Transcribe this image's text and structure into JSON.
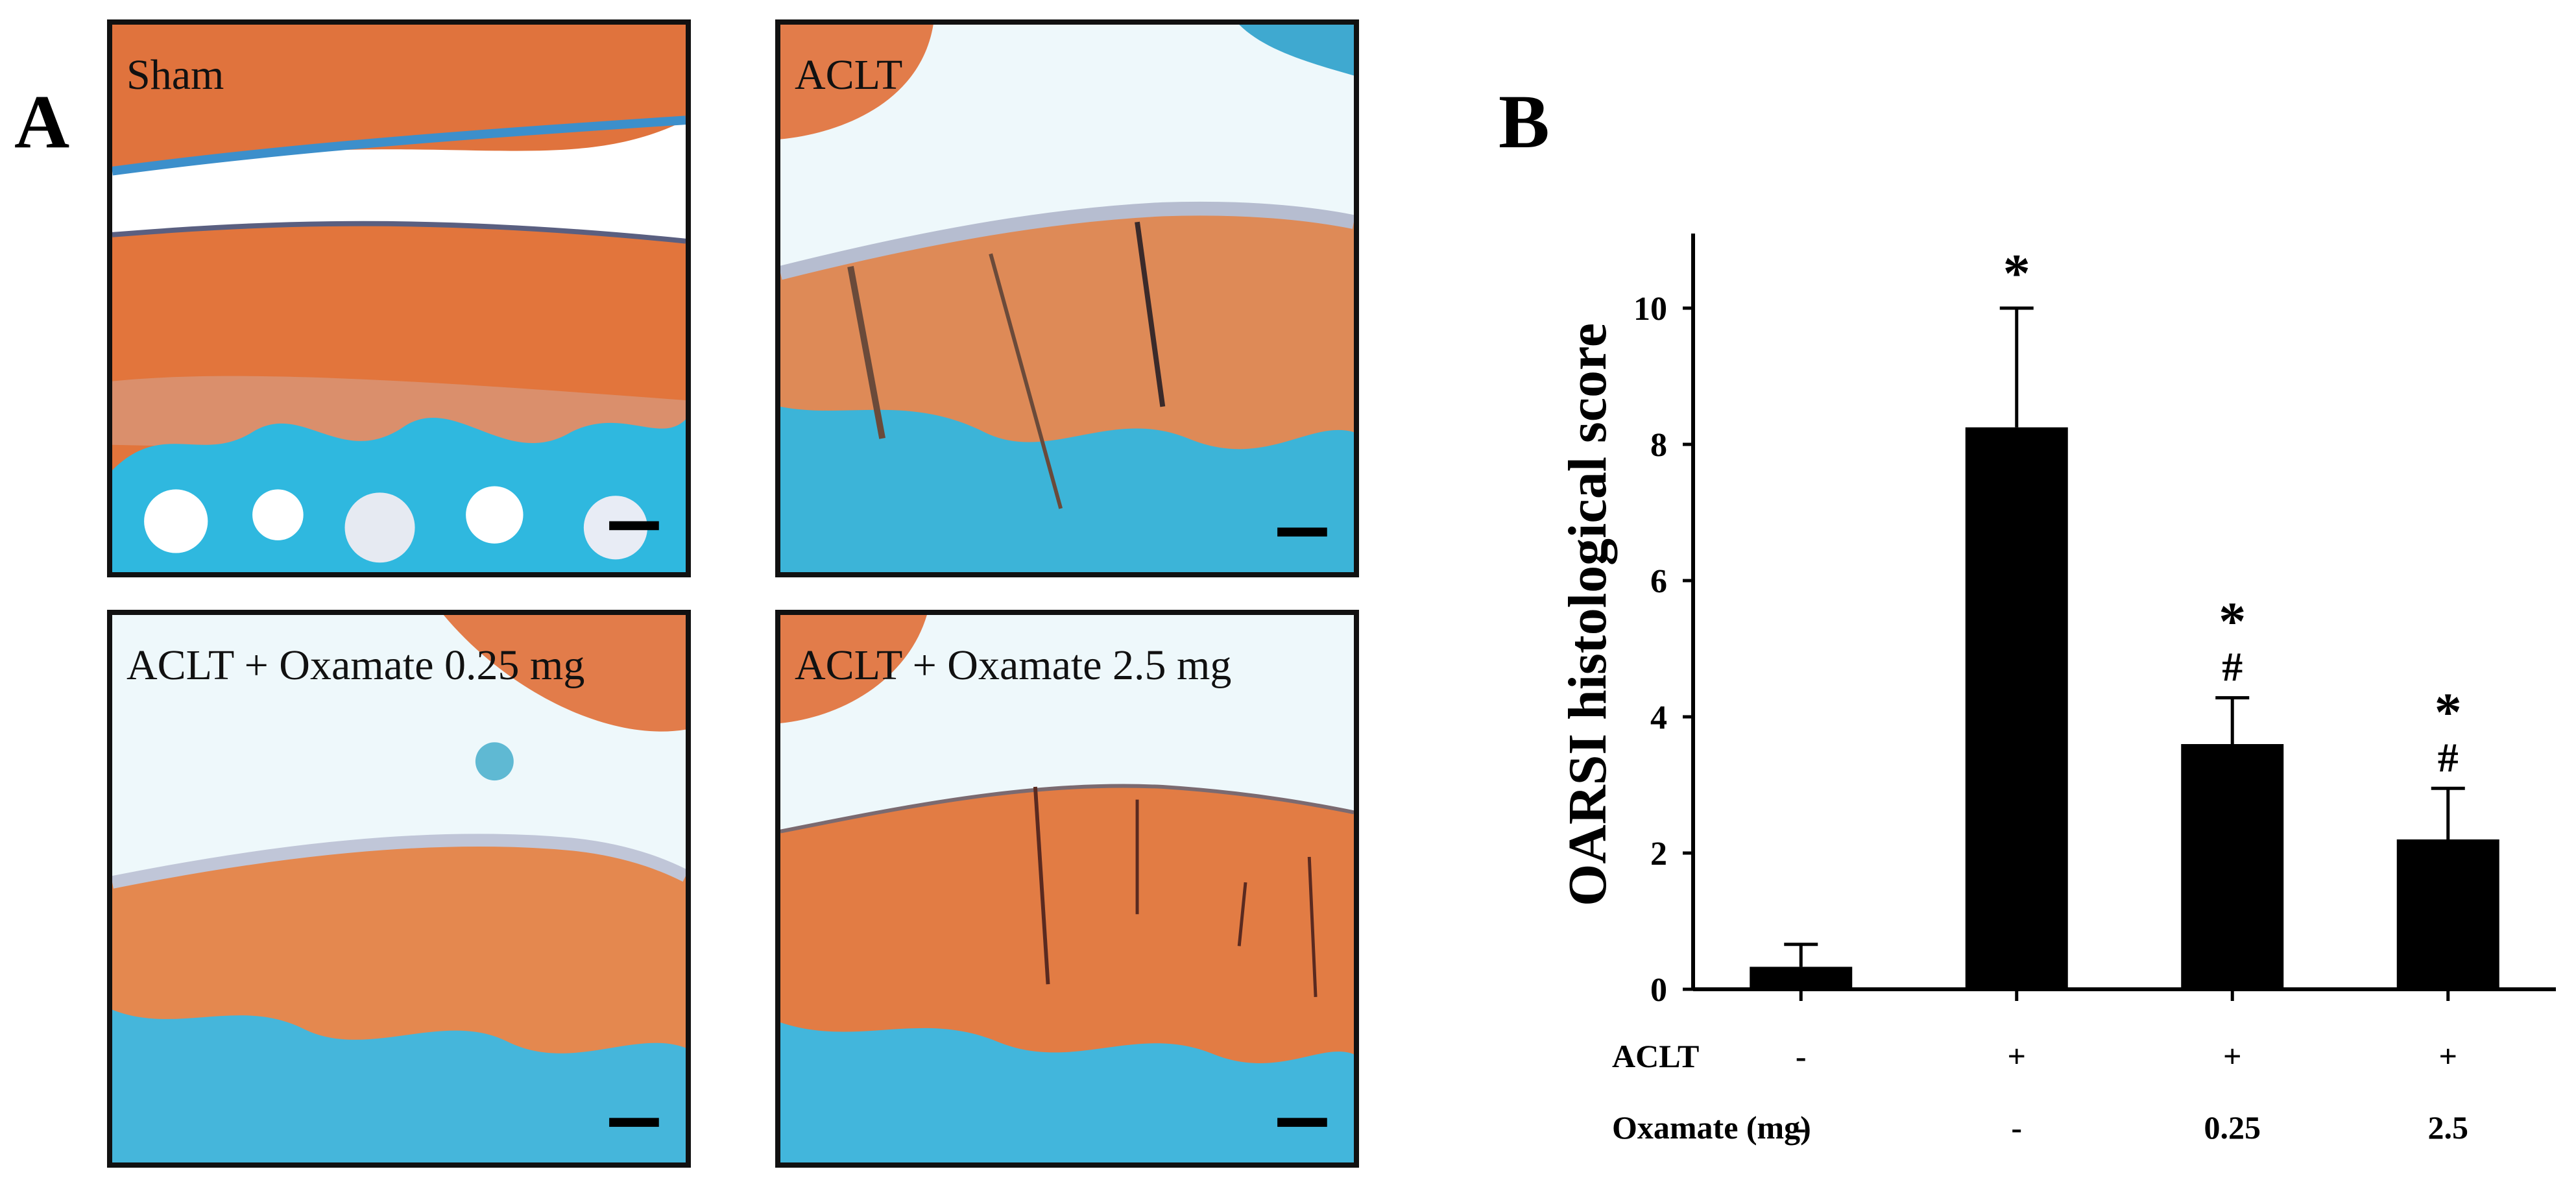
{
  "figure": {
    "panel_a_letter": "A",
    "panel_b_letter": "B",
    "micrographs": [
      {
        "label": "Sham"
      },
      {
        "label": "ACLT"
      },
      {
        "label": "ACLT + Oxamate 0.25 mg"
      },
      {
        "label": "ACLT + Oxamate 2.5 mg"
      }
    ]
  },
  "colors": {
    "bar": "#000000",
    "cartilage": "#e0733d",
    "bone": "#3cb4d8",
    "background_tissue": "#eef8fb"
  },
  "chart_data": {
    "type": "bar",
    "ylabel": "OARSI histological score",
    "ylim": [
      0,
      11
    ],
    "yticks": [
      0,
      2,
      4,
      6,
      8,
      10
    ],
    "values": [
      0.33,
      8.25,
      3.6,
      2.2
    ],
    "errors": [
      0.33,
      1.75,
      0.68,
      0.75
    ],
    "annotations": [
      [],
      [
        "*"
      ],
      [
        "#",
        "*"
      ],
      [
        "#",
        "*"
      ]
    ],
    "condition_table": [
      {
        "label": "ACLT",
        "values": [
          "-",
          "+",
          "+",
          "+"
        ]
      },
      {
        "label": "Oxamate (mg)",
        "values": [
          "-",
          "-",
          "0.25",
          "2.5"
        ]
      }
    ]
  }
}
